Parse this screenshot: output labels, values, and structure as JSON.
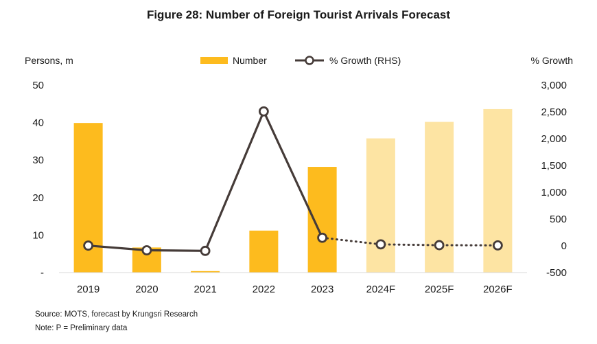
{
  "chart_data": {
    "type": "bar+line",
    "title": "Figure 28: Number of Foreign Tourist Arrivals Forecast",
    "categories": [
      "2019",
      "2020",
      "2021",
      "2022",
      "2023",
      "2024F",
      "2025F",
      "2026F"
    ],
    "forecast_start_index": 5,
    "y_left": {
      "label": "Persons, m",
      "lim": [
        0,
        50
      ],
      "ticks": [
        0,
        10,
        20,
        30,
        40,
        50
      ],
      "tick_labels": [
        "-",
        "10",
        "20",
        "30",
        "40",
        "50"
      ]
    },
    "y_right": {
      "label": "% Growth",
      "lim": [
        -500,
        3000
      ],
      "ticks": [
        -500,
        0,
        500,
        1000,
        1500,
        2000,
        2500,
        3000
      ],
      "tick_labels": [
        "-500",
        "0",
        "500",
        "1,000",
        "1,500",
        "2,000",
        "2,500",
        "3,000"
      ]
    },
    "series": [
      {
        "name": "Number",
        "type": "bar",
        "axis": "left",
        "values": [
          39.9,
          6.7,
          0.4,
          11.2,
          28.2,
          35.8,
          40.2,
          43.6
        ],
        "color": "#fdbb1e",
        "forecast_color": "#fde4a3"
      },
      {
        "name": "% Growth (RHS)",
        "type": "line",
        "axis": "right",
        "values": [
          4,
          -83,
          -94,
          2510,
          151,
          27,
          12,
          8
        ],
        "color": "#453b38"
      }
    ],
    "legend_position": "top-center",
    "grid": false
  },
  "footnotes": {
    "source": "Source: MOTS, forecast by Krungsri Research",
    "note": "Note: P = Preliminary data"
  }
}
